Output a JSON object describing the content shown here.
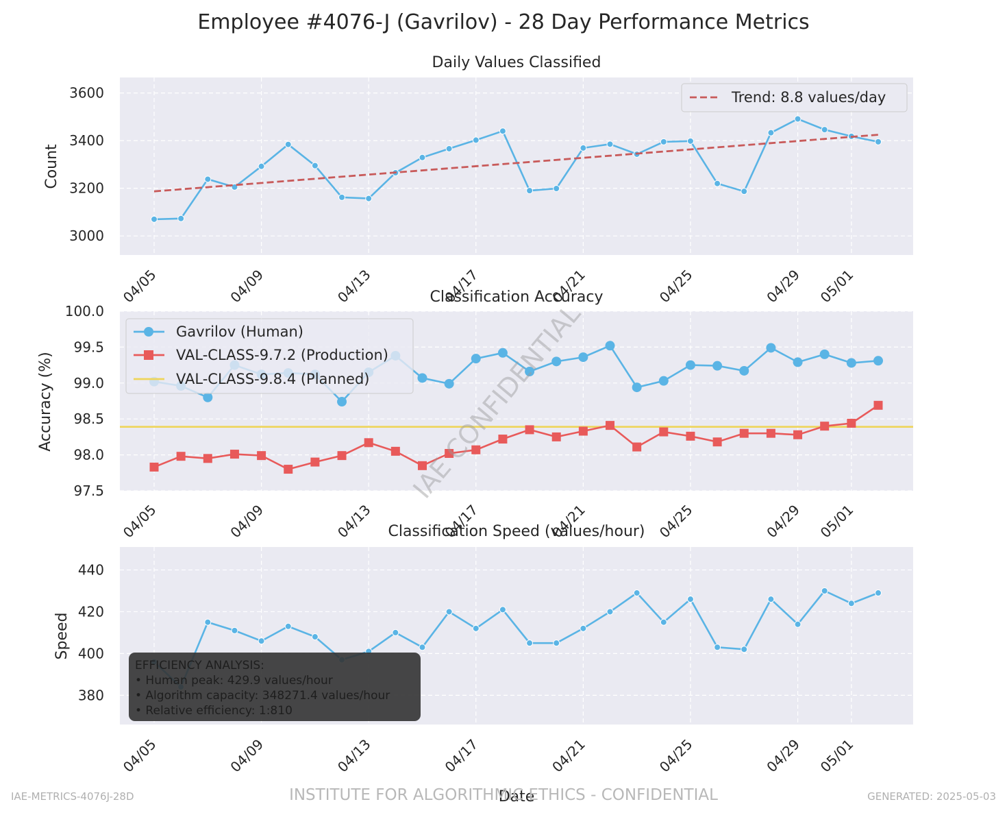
{
  "title": "Employee #4076-J (Gavrilov) - 28 Day Performance Metrics",
  "footer": {
    "left": "IAE-METRICS-4076J-28D",
    "center": "INSTITUTE FOR ALGORITHMIC ETHICS - CONFIDENTIAL",
    "right": "GENERATED: 2025-05-03"
  },
  "watermark": "IAE CONFIDENTIAL",
  "colors": {
    "human": "#5ab4e5",
    "production": "#e85a5a",
    "planned": "#eed55a",
    "trend": "#c85a5a",
    "panel_bg": "#eaeaf2"
  },
  "chart_data": [
    {
      "type": "line",
      "title": "Daily Values Classified",
      "xlabel": "",
      "ylabel": "Count",
      "ylim": [
        2920,
        3665
      ],
      "yticks": [
        3000,
        3200,
        3400,
        3600
      ],
      "x_ticks": [
        "04/05",
        "04/09",
        "04/13",
        "04/17",
        "04/21",
        "04/25",
        "04/29",
        "05/01"
      ],
      "x_tick_days": [
        0,
        4,
        8,
        12,
        16,
        20,
        24,
        26
      ],
      "x": [
        "04/05",
        "04/06",
        "04/07",
        "04/08",
        "04/09",
        "04/10",
        "04/11",
        "04/12",
        "04/13",
        "04/14",
        "04/15",
        "04/16",
        "04/17",
        "04/18",
        "04/19",
        "04/20",
        "04/21",
        "04/22",
        "04/23",
        "04/24",
        "04/25",
        "04/26",
        "04/27",
        "04/28",
        "04/29",
        "04/30",
        "05/01",
        "05/02"
      ],
      "grid": true,
      "legend_position": "top-right",
      "series": [
        {
          "values": [
            3070,
            3073,
            3238,
            3205,
            3292,
            3384,
            3295,
            3162,
            3157,
            3265,
            3329,
            3366,
            3402,
            3440,
            3190,
            3199,
            3369,
            3385,
            3343,
            3395,
            3398,
            3220,
            3187,
            3433,
            3491,
            3446,
            3418,
            3395
          ]
        },
        {
          "name": "Trend: 8.8 values/day",
          "style": "dashed",
          "slope": 8.8,
          "intercept": 3187
        }
      ]
    },
    {
      "type": "line",
      "title": "Classification Accuracy",
      "xlabel": "",
      "ylabel": "Accuracy (%)",
      "ylim": [
        97.5,
        100.0
      ],
      "yticks": [
        "97.5",
        "98.0",
        "98.5",
        "99.0",
        "99.5",
        "100.0"
      ],
      "x_ticks": [
        "04/05",
        "04/09",
        "04/13",
        "04/17",
        "04/21",
        "04/25",
        "04/29",
        "05/01"
      ],
      "grid": true,
      "legend_position": "top-left",
      "series": [
        {
          "name": "Gavrilov (Human)",
          "values": [
            99.02,
            98.96,
            98.8,
            99.25,
            99.12,
            99.14,
            99.12,
            98.74,
            99.15,
            99.38,
            99.07,
            98.99,
            99.34,
            99.42,
            99.16,
            99.3,
            99.36,
            99.52,
            98.94,
            99.03,
            99.25,
            99.24,
            99.17,
            99.49,
            99.29,
            99.4,
            99.28,
            99.31
          ]
        },
        {
          "name": "VAL-CLASS-9.7.2 (Production)",
          "values": [
            97.83,
            97.98,
            97.95,
            98.01,
            97.99,
            97.8,
            97.9,
            97.99,
            98.17,
            98.05,
            97.85,
            98.02,
            98.07,
            98.22,
            98.35,
            98.25,
            98.33,
            98.41,
            98.11,
            98.32,
            98.26,
            98.18,
            98.3,
            98.3,
            98.28,
            98.4,
            98.44,
            98.69
          ]
        },
        {
          "name": "VAL-CLASS-9.8.4 (Planned)",
          "constant": 98.39
        }
      ]
    },
    {
      "type": "line",
      "title": "Classification Speed (values/hour)",
      "xlabel": "Date",
      "ylabel": "Speed",
      "ylim": [
        366,
        451
      ],
      "yticks": [
        380,
        400,
        420,
        440
      ],
      "x_ticks": [
        "04/05",
        "04/09",
        "04/13",
        "04/17",
        "04/21",
        "04/25",
        "04/29",
        "05/01"
      ],
      "grid": true,
      "series": [
        {
          "values": [
            396,
            384,
            415,
            411,
            406,
            413,
            408,
            397,
            401,
            410,
            403,
            420,
            412,
            421,
            405,
            405,
            412,
            420,
            429,
            415,
            426,
            403,
            402,
            426,
            414,
            430,
            424,
            429
          ]
        }
      ],
      "annotation": {
        "title": "EFFICIENCY ANALYSIS:",
        "lines": [
          "• Human peak: 429.9 values/hour",
          "• Algorithm capacity: 348271.4 values/hour",
          "• Relative efficiency: 1:810"
        ]
      }
    }
  ]
}
